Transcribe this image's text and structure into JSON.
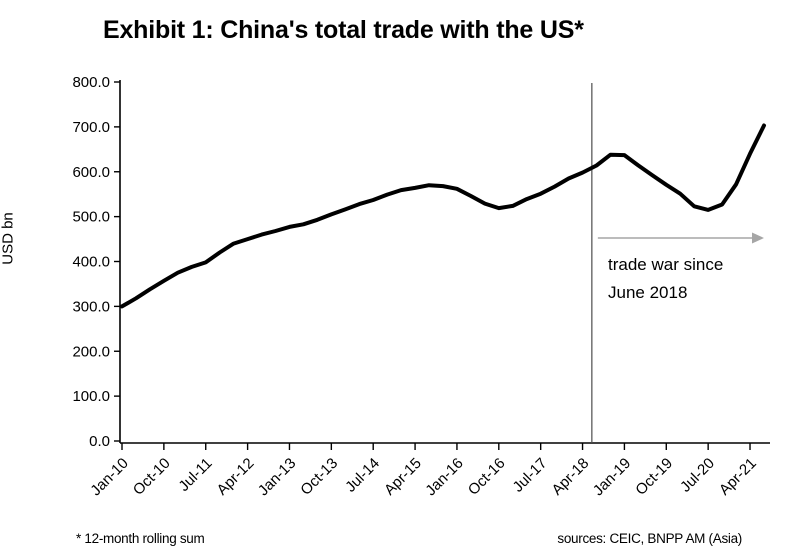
{
  "title": "Exhibit 1: China's total trade with the US*",
  "footnote": "* 12-month rolling sum",
  "source": "sources: CEIC, BNPP AM (Asia)",
  "annotation": {
    "line1": "trade war since",
    "line2": "June 2018"
  },
  "colors": {
    "line": "#000000",
    "axis": "#000000",
    "event_line": "#4d4d4d",
    "arrow": "#a6a6a6",
    "text": "#000000"
  },
  "chart_data": {
    "type": "line",
    "title": "Exhibit 1: China's total trade with the US*",
    "xlabel": "",
    "ylabel": "USD bn",
    "ylim": [
      0,
      800
    ],
    "y_tick_step": 100,
    "y_tick_format_decimals": 1,
    "grid": false,
    "legend": false,
    "x_tick_labels": [
      "Jan-10",
      "Oct-10",
      "Jul-11",
      "Apr-12",
      "Jan-13",
      "Oct-13",
      "Jul-14",
      "Apr-15",
      "Jan-16",
      "Oct-16",
      "Jul-17",
      "Apr-18",
      "Jan-19",
      "Oct-19",
      "Jul-20",
      "Apr-21"
    ],
    "x": [
      "Jan-10",
      "Apr-10",
      "Jul-10",
      "Oct-10",
      "Jan-11",
      "Apr-11",
      "Jul-11",
      "Oct-11",
      "Jan-12",
      "Apr-12",
      "Jul-12",
      "Oct-12",
      "Jan-13",
      "Apr-13",
      "Jul-13",
      "Oct-13",
      "Jan-14",
      "Apr-14",
      "Jul-14",
      "Oct-14",
      "Jan-15",
      "Apr-15",
      "Jul-15",
      "Oct-15",
      "Jan-16",
      "Apr-16",
      "Jul-16",
      "Oct-16",
      "Jan-17",
      "Apr-17",
      "Jul-17",
      "Oct-17",
      "Jan-18",
      "Apr-18",
      "Jul-18",
      "Oct-18",
      "Jan-19",
      "Apr-19",
      "Jul-19",
      "Oct-19",
      "Jan-20",
      "Apr-20",
      "Jul-20",
      "Oct-20",
      "Jan-21",
      "Apr-21",
      "Jul-21"
    ],
    "series": [
      {
        "name": "China total trade with the US, 12-month rolling sum (USD bn)",
        "values": [
          300,
          318,
          338,
          357,
          375,
          388,
          398,
          420,
          440,
          450,
          460,
          468,
          477,
          483,
          493,
          505,
          516,
          528,
          537,
          549,
          559,
          564,
          570,
          568,
          562,
          546,
          529,
          519,
          524,
          539,
          551,
          567,
          585,
          598,
          614,
          638,
          637,
          614,
          592,
          571,
          551,
          523,
          515,
          527,
          572,
          640,
          703
        ]
      }
    ],
    "event_line": {
      "label": "trade war since June 2018",
      "x_label": "Jun-18",
      "month_index": 101
    }
  }
}
